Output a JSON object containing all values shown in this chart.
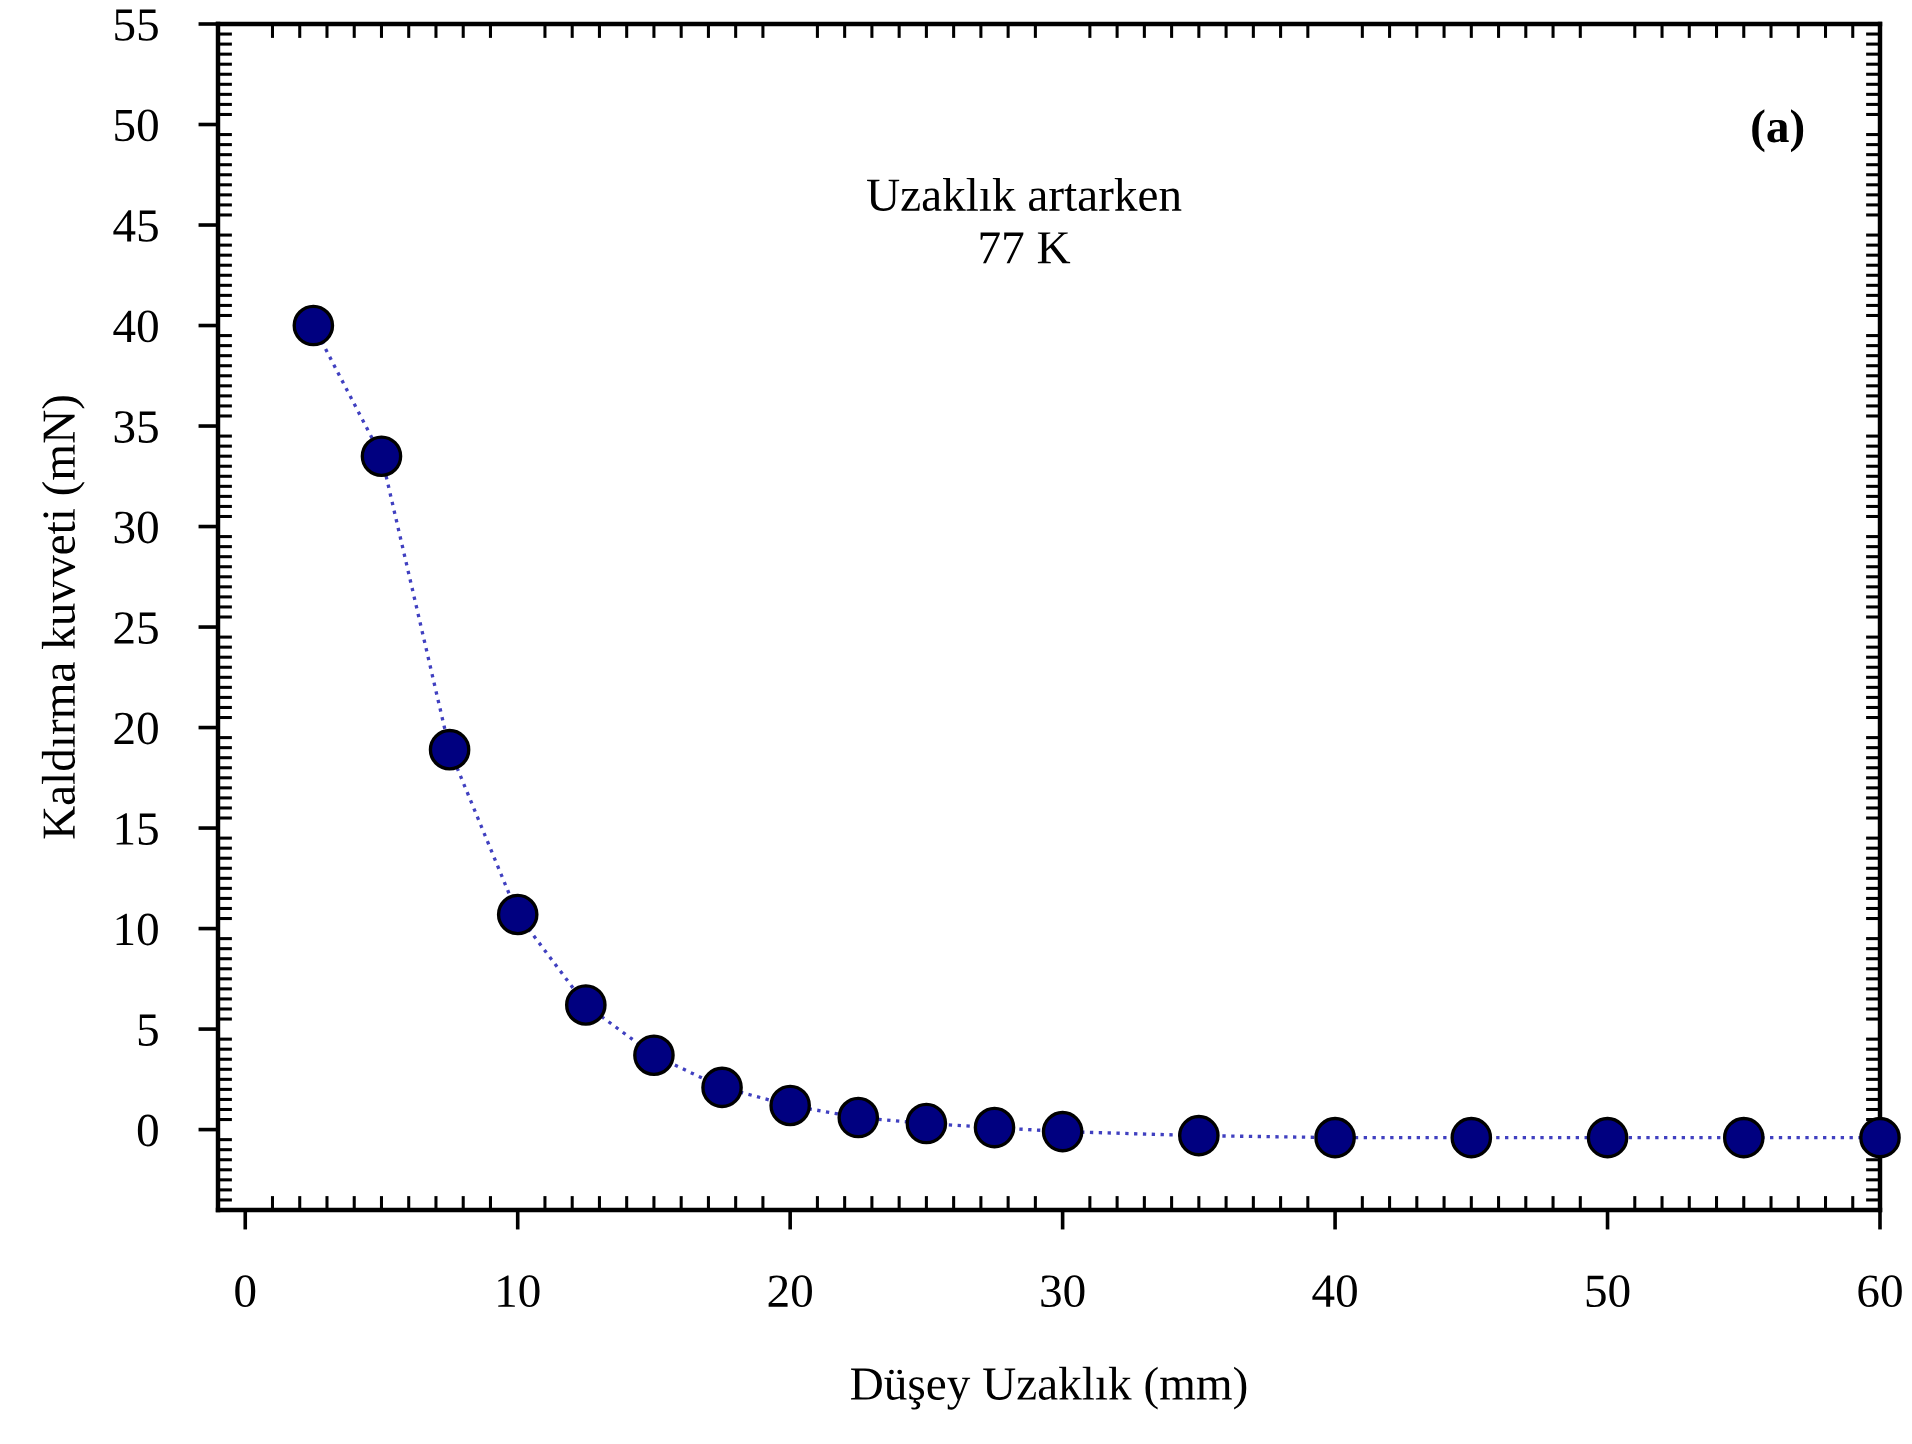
{
  "chart_data": {
    "type": "scatter",
    "xlabel": "Düşey Uzaklık (mm)",
    "ylabel": "Kaldırma kuvveti (mN)",
    "annotations": [
      "Uzaklık artarken\n77 K",
      "(a)"
    ],
    "x": [
      2.5,
      5,
      7.5,
      10,
      12.5,
      15,
      17.5,
      20,
      22.5,
      25,
      27.5,
      30,
      35,
      40,
      45,
      50,
      55,
      60
    ],
    "series": [
      {
        "color": "#000080",
        "marker": "circle",
        "values": [
          40,
          33.5,
          18.9,
          10.7,
          6.2,
          3.7,
          2.1,
          1.2,
          0.6,
          0.3,
          0.1,
          -0.1,
          -0.3,
          -0.4,
          -0.4,
          -0.4,
          -0.4,
          -0.4
        ]
      },
      {
        "type": "line",
        "color": "#4040c0",
        "line_style": "dotted",
        "values": [
          40,
          33.5,
          18.9,
          10.7,
          6.2,
          3.7,
          2.1,
          1.2,
          0.6,
          0.3,
          0.1,
          -0.1,
          -0.3,
          -0.4,
          -0.4,
          -0.4,
          -0.4,
          -0.4
        ]
      }
    ],
    "xlim": [
      -1,
      60
    ],
    "ylim": [
      -4,
      55
    ],
    "xticks": [
      0,
      10,
      20,
      30,
      40,
      50,
      60
    ],
    "yticks": [
      0,
      5,
      10,
      15,
      20,
      25,
      30,
      35,
      40,
      45,
      50,
      55
    ],
    "grid": false,
    "legend": false
  }
}
